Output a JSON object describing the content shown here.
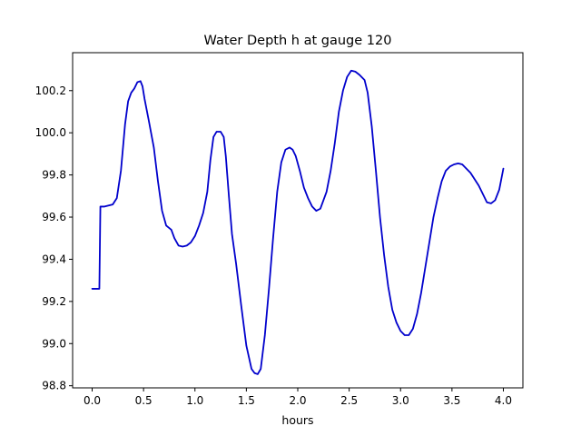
{
  "chart_data": {
    "type": "line",
    "title": "Water Depth h at gauge 120",
    "xlabel": "hours",
    "ylabel": "",
    "xlim": [
      -0.19,
      4.19
    ],
    "ylim": [
      98.79,
      100.38
    ],
    "xticks": [
      0.0,
      0.5,
      1.0,
      1.5,
      2.0,
      2.5,
      3.0,
      3.5,
      4.0
    ],
    "xtick_labels": [
      "0.0",
      "0.5",
      "1.0",
      "1.5",
      "2.0",
      "2.5",
      "3.0",
      "3.5",
      "4.0"
    ],
    "yticks": [
      98.8,
      99.0,
      99.2,
      99.4,
      99.6,
      99.8,
      100.0,
      100.2
    ],
    "ytick_labels": [
      "98.8",
      "99.0",
      "99.2",
      "99.4",
      "99.6",
      "99.8",
      "100.0",
      "100.2"
    ],
    "grid": false,
    "series": [
      {
        "color": "#0000cc",
        "x": [
          0.0,
          0.07,
          0.07,
          0.08,
          0.12,
          0.16,
          0.2,
          0.24,
          0.28,
          0.32,
          0.35,
          0.38,
          0.41,
          0.44,
          0.47,
          0.49,
          0.51,
          0.55,
          0.6,
          0.64,
          0.68,
          0.72,
          0.77,
          0.8,
          0.84,
          0.88,
          0.92,
          0.96,
          1.0,
          1.04,
          1.08,
          1.12,
          1.15,
          1.18,
          1.21,
          1.25,
          1.28,
          1.3,
          1.33,
          1.36,
          1.4,
          1.45,
          1.5,
          1.55,
          1.58,
          1.61,
          1.64,
          1.68,
          1.72,
          1.76,
          1.8,
          1.84,
          1.88,
          1.92,
          1.95,
          1.98,
          2.02,
          2.06,
          2.1,
          2.14,
          2.18,
          2.22,
          2.25,
          2.28,
          2.32,
          2.36,
          2.4,
          2.44,
          2.48,
          2.52,
          2.56,
          2.6,
          2.65,
          2.68,
          2.72,
          2.76,
          2.8,
          2.84,
          2.88,
          2.92,
          2.96,
          3.0,
          3.04,
          3.08,
          3.12,
          3.16,
          3.2,
          3.24,
          3.28,
          3.32,
          3.36,
          3.4,
          3.44,
          3.48,
          3.52,
          3.56,
          3.6,
          3.64,
          3.68,
          3.72,
          3.76,
          3.8,
          3.84,
          3.88,
          3.92,
          3.96,
          4.0
        ],
        "y": [
          99.26,
          99.26,
          99.26,
          99.65,
          99.65,
          99.655,
          99.66,
          99.69,
          99.82,
          100.04,
          100.15,
          100.19,
          100.21,
          100.24,
          100.245,
          100.22,
          100.16,
          100.06,
          99.93,
          99.77,
          99.63,
          99.56,
          99.54,
          99.5,
          99.465,
          99.46,
          99.465,
          99.48,
          99.51,
          99.56,
          99.62,
          99.72,
          99.87,
          99.98,
          100.005,
          100.005,
          99.98,
          99.89,
          99.7,
          99.52,
          99.38,
          99.18,
          98.99,
          98.88,
          98.86,
          98.855,
          98.88,
          99.04,
          99.26,
          99.5,
          99.72,
          99.86,
          99.92,
          99.93,
          99.92,
          99.89,
          99.82,
          99.74,
          99.69,
          99.65,
          99.63,
          99.64,
          99.68,
          99.72,
          99.82,
          99.95,
          100.1,
          100.2,
          100.265,
          100.295,
          100.29,
          100.275,
          100.25,
          100.19,
          100.03,
          99.82,
          99.6,
          99.42,
          99.27,
          99.16,
          99.1,
          99.06,
          99.04,
          99.04,
          99.07,
          99.14,
          99.24,
          99.36,
          99.48,
          99.6,
          99.69,
          99.77,
          99.82,
          99.84,
          99.85,
          99.855,
          99.85,
          99.83,
          99.81,
          99.78,
          99.75,
          99.71,
          99.67,
          99.665,
          99.68,
          99.73,
          99.83
        ]
      }
    ]
  }
}
